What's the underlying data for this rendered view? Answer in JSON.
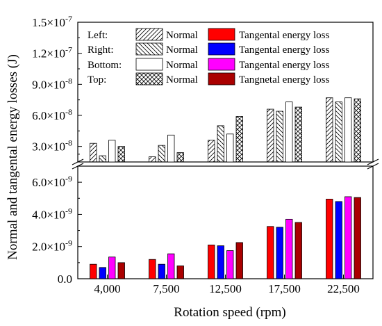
{
  "chart_data": {
    "type": "bar",
    "title": "",
    "xlabel": "Rotation speed (rpm)",
    "ylabel": "Normal and tangental energy losses (J)",
    "categories": [
      "4,000",
      "7,500",
      "12,500",
      "17,500",
      "22,500"
    ],
    "axis_break": true,
    "grid": false,
    "legend_position": "top-right",
    "upper_ylim": [
      1.5e-08,
      1.5e-07
    ],
    "upper_ticks": [
      {
        "value": 3e-08,
        "mant": "3.0×10",
        "exp": "-8"
      },
      {
        "value": 6e-08,
        "mant": "6.0×10",
        "exp": "-8"
      },
      {
        "value": 9e-08,
        "mant": "9.0×10",
        "exp": "-8"
      },
      {
        "value": 1.2e-07,
        "mant": "1.2×10",
        "exp": "-7"
      },
      {
        "value": 1.5e-07,
        "mant": "1.5×10",
        "exp": "-7"
      }
    ],
    "lower_ylim": [
      0,
      7e-09
    ],
    "lower_ticks": [
      {
        "value": 0,
        "mant": "0.0",
        "exp": ""
      },
      {
        "value": 2e-09,
        "mant": "2.0×10",
        "exp": "-9"
      },
      {
        "value": 4e-09,
        "mant": "4.0×10",
        "exp": "-9"
      },
      {
        "value": 6e-09,
        "mant": "6.0×10",
        "exp": "-9"
      }
    ],
    "normal_series": [
      {
        "name": "Left: Normal",
        "position": "Left",
        "pattern": "diag-fwd",
        "values": [
          3.3e-08,
          2e-08,
          3.6e-08,
          6.6e-08,
          7.7e-08
        ]
      },
      {
        "name": "Right: Normal",
        "position": "Right",
        "pattern": "diag-back",
        "values": [
          2.1e-08,
          3.1e-08,
          5e-08,
          6.4e-08,
          7.3e-08
        ]
      },
      {
        "name": "Bottom: Normal",
        "position": "Bottom",
        "pattern": "none",
        "values": [
          3.6e-08,
          4.1e-08,
          4.2e-08,
          7.3e-08,
          7.7e-08
        ]
      },
      {
        "name": "Top: Normal",
        "position": "Top",
        "pattern": "crosshatch",
        "values": [
          3e-08,
          2.4e-08,
          5.9e-08,
          6.8e-08,
          7.6e-08
        ]
      }
    ],
    "tangential_series": [
      {
        "name": "Left: Tangental energy loss",
        "label": "Tangental energy loss",
        "color": "#ff0000",
        "values": [
          9e-10,
          1.2e-09,
          2.1e-09,
          3.25e-09,
          4.95e-09
        ]
      },
      {
        "name": "Right: Tangental energy loss",
        "label": "Tangental energy loss",
        "color": "#0000ff",
        "values": [
          7e-10,
          9e-10,
          2.05e-09,
          3.2e-09,
          4.8e-09
        ]
      },
      {
        "name": "Bottom: Tangental energy loss",
        "label": "Tangental energy loss",
        "color": "#ff00ff",
        "values": [
          1.35e-09,
          1.55e-09,
          1.75e-09,
          3.7e-09,
          5.1e-09
        ]
      },
      {
        "name": "Top: Tangnetal energy loss",
        "label": "Tangnetal energy loss",
        "color": "#aa0000",
        "values": [
          1e-09,
          8e-10,
          2.25e-09,
          3.5e-09,
          5.05e-09
        ]
      }
    ],
    "legend": [
      {
        "position": "Left:",
        "normal": "Normal",
        "tangential": "Tangental energy loss"
      },
      {
        "position": "Right:",
        "normal": "Normal",
        "tangential": "Tangental energy loss"
      },
      {
        "position": "Bottom:",
        "normal": "Normal",
        "tangential": "Tangental energy loss"
      },
      {
        "position": "Top:",
        "normal": "Normal",
        "tangential": "Tangnetal energy loss"
      }
    ]
  }
}
